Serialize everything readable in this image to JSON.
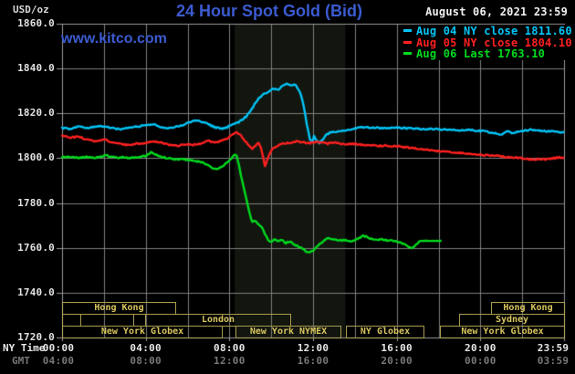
{
  "header": {
    "unit_label": "USD/oz",
    "title": "24 Hour Spot Gold (Bid)",
    "datetime": "August 06, 2021 23:59",
    "watermark": "www.kitco.com"
  },
  "legend": [
    {
      "label": "Aug 04 NY close 1811.60",
      "color": "#00c6f8"
    },
    {
      "label": "Aug 05 NY close 1804.10",
      "color": "#ff2020"
    },
    {
      "label": "Aug 06 Last 1763.10",
      "color": "#00dc1e"
    }
  ],
  "axes": {
    "ny_time_label": "NY Time",
    "gmt_label": "GMT",
    "y_ticks": [
      {
        "value": 1860,
        "label": "1860.0"
      },
      {
        "value": 1840,
        "label": "1840.0"
      },
      {
        "value": 1820,
        "label": "1820.0"
      },
      {
        "value": 1800,
        "label": "1800.0"
      },
      {
        "value": 1780,
        "label": "1780.0"
      },
      {
        "value": 1760,
        "label": "1760.0"
      },
      {
        "value": 1740,
        "label": "1740.0"
      },
      {
        "value": 1720,
        "label": "1720.0"
      }
    ],
    "x_ticks": [
      {
        "hour": 0,
        "ny": "00:00",
        "gmt": "04:00"
      },
      {
        "hour": 4,
        "ny": "04:00",
        "gmt": "08:00"
      },
      {
        "hour": 8,
        "ny": "08:00",
        "gmt": "12:00"
      },
      {
        "hour": 12,
        "ny": "12:00",
        "gmt": "16:00"
      },
      {
        "hour": 16,
        "ny": "16:00",
        "gmt": "20:00"
      },
      {
        "hour": 20,
        "ny": "20:00",
        "gmt": "00:00"
      },
      {
        "hour": 23.983,
        "ny": "23:59",
        "gmt": "03:59"
      }
    ]
  },
  "sessions": [
    {
      "row": 1,
      "start_hour": 0,
      "end_hour": 5.4,
      "label": "Hong Kong"
    },
    {
      "row": 1,
      "start_hour": 20.5,
      "end_hour": 24,
      "label": "Hong Kong"
    },
    {
      "row": 2,
      "start_hour": 0,
      "end_hour": 0.87,
      "label": ""
    },
    {
      "row": 2,
      "start_hour": 0.87,
      "end_hour": 3.4,
      "label": ""
    },
    {
      "row": 2,
      "start_hour": 3.95,
      "end_hour": 10.9,
      "label": "London"
    },
    {
      "row": 2,
      "start_hour": 19.0,
      "end_hour": 24,
      "label": "Sydney"
    },
    {
      "row": 3,
      "start_hour": 0,
      "end_hour": 7.65,
      "label": "New York Globex"
    },
    {
      "row": 3,
      "start_hour": 8.3,
      "end_hour": 13.3,
      "label": "New York NYMEX"
    },
    {
      "row": 3,
      "start_hour": 13.55,
      "end_hour": 17.3,
      "label": "NY Globex"
    },
    {
      "row": 3,
      "start_hour": 18.05,
      "end_hour": 24,
      "label": "New York Globex"
    }
  ],
  "colors": {
    "title_blue": "#3b5bd0",
    "grid_gray": "#7e7e7e",
    "border_gray": "#9a9a9a",
    "band_fill": "#12160f",
    "session_border": "#a89a4e",
    "session_text": "#d8c65e"
  },
  "chart_data": {
    "type": "line",
    "title": "24 Hour Spot Gold (Bid)",
    "xlabel": "NY Time (hours)",
    "ylabel": "USD/oz",
    "xlim": [
      0,
      24
    ],
    "ylim": [
      1720,
      1860
    ],
    "grid": {
      "x_step_hours": 2,
      "y_step": 20
    },
    "legend_position": "top-right",
    "highlight_band_hours": [
      8.25,
      13.55
    ],
    "series": [
      {
        "name": "Aug 04 NY close",
        "close": 1811.6,
        "color": "#00c6f8",
        "noise": 0.8,
        "points": [
          [
            0,
            1813.6
          ],
          [
            0.4,
            1813.1
          ],
          [
            0.8,
            1814.2
          ],
          [
            1.2,
            1813.4
          ],
          [
            1.6,
            1814.0
          ],
          [
            2.0,
            1814.4
          ],
          [
            2.4,
            1813.4
          ],
          [
            2.8,
            1813.0
          ],
          [
            3.2,
            1813.6
          ],
          [
            3.6,
            1814.2
          ],
          [
            4.0,
            1814.6
          ],
          [
            4.4,
            1815.1
          ],
          [
            4.7,
            1814.1
          ],
          [
            5.0,
            1813.3
          ],
          [
            5.4,
            1813.9
          ],
          [
            5.8,
            1814.9
          ],
          [
            6.1,
            1816.0
          ],
          [
            6.4,
            1816.7
          ],
          [
            6.7,
            1816.2
          ],
          [
            7.0,
            1815.2
          ],
          [
            7.3,
            1813.8
          ],
          [
            7.6,
            1813.2
          ],
          [
            7.9,
            1813.9
          ],
          [
            8.2,
            1815.3
          ],
          [
            8.5,
            1816.4
          ],
          [
            8.8,
            1818.5
          ],
          [
            9.0,
            1821.0
          ],
          [
            9.2,
            1824.0
          ],
          [
            9.4,
            1826.6
          ],
          [
            9.6,
            1828.3
          ],
          [
            9.8,
            1829.4
          ],
          [
            10.0,
            1830.6
          ],
          [
            10.2,
            1831.2
          ],
          [
            10.35,
            1830.5
          ],
          [
            10.5,
            1831.8
          ],
          [
            10.65,
            1832.8
          ],
          [
            10.8,
            1833.2
          ],
          [
            11.0,
            1832.4
          ],
          [
            11.1,
            1833.0
          ],
          [
            11.25,
            1831.6
          ],
          [
            11.4,
            1828.8
          ],
          [
            11.55,
            1823.5
          ],
          [
            11.7,
            1815.0
          ],
          [
            11.85,
            1808.5
          ],
          [
            11.95,
            1807.3
          ],
          [
            12.05,
            1809.9
          ],
          [
            12.15,
            1808.3
          ],
          [
            12.3,
            1806.9
          ],
          [
            12.45,
            1808.1
          ],
          [
            12.6,
            1810.3
          ],
          [
            12.8,
            1811.4
          ],
          [
            13.0,
            1811.7
          ],
          [
            13.4,
            1812.3
          ],
          [
            13.8,
            1812.8
          ],
          [
            14.2,
            1813.6
          ],
          [
            14.6,
            1813.9
          ],
          [
            15.0,
            1813.6
          ],
          [
            15.4,
            1813.3
          ],
          [
            15.8,
            1813.7
          ],
          [
            16.2,
            1813.5
          ],
          [
            16.6,
            1813.3
          ],
          [
            17.0,
            1813.1
          ],
          [
            17.4,
            1812.9
          ],
          [
            17.8,
            1813.1
          ],
          [
            18.2,
            1812.8
          ],
          [
            18.6,
            1812.6
          ],
          [
            19.0,
            1812.5
          ],
          [
            19.4,
            1812.8
          ],
          [
            19.8,
            1812.3
          ],
          [
            20.2,
            1812.0
          ],
          [
            20.6,
            1811.3
          ],
          [
            20.9,
            1810.5
          ],
          [
            21.1,
            1811.0
          ],
          [
            21.3,
            1811.9
          ],
          [
            21.5,
            1811.3
          ],
          [
            21.8,
            1811.7
          ],
          [
            22.1,
            1812.4
          ],
          [
            22.4,
            1812.7
          ],
          [
            22.7,
            1812.3
          ],
          [
            23.0,
            1812.1
          ],
          [
            23.4,
            1811.9
          ],
          [
            23.7,
            1811.7
          ],
          [
            23.98,
            1811.6
          ]
        ]
      },
      {
        "name": "Aug 05 NY close",
        "close": 1804.1,
        "color": "#ff2020",
        "noise": 0.8,
        "points": [
          [
            0,
            1810.1
          ],
          [
            0.4,
            1809.2
          ],
          [
            0.8,
            1809.6
          ],
          [
            1.2,
            1808.3
          ],
          [
            1.6,
            1807.6
          ],
          [
            2.0,
            1808.4
          ],
          [
            2.4,
            1807.1
          ],
          [
            2.8,
            1806.3
          ],
          [
            3.2,
            1805.9
          ],
          [
            3.6,
            1806.5
          ],
          [
            4.0,
            1806.9
          ],
          [
            4.4,
            1807.6
          ],
          [
            4.8,
            1806.7
          ],
          [
            5.2,
            1805.9
          ],
          [
            5.5,
            1805.4
          ],
          [
            5.8,
            1806.2
          ],
          [
            6.2,
            1805.9
          ],
          [
            6.6,
            1806.4
          ],
          [
            7.0,
            1807.7
          ],
          [
            7.3,
            1807.1
          ],
          [
            7.6,
            1807.6
          ],
          [
            7.9,
            1808.9
          ],
          [
            8.15,
            1810.8
          ],
          [
            8.35,
            1811.7
          ],
          [
            8.55,
            1810.2
          ],
          [
            8.75,
            1807.6
          ],
          [
            8.95,
            1805.6
          ],
          [
            9.1,
            1804.4
          ],
          [
            9.25,
            1805.7
          ],
          [
            9.4,
            1806.9
          ],
          [
            9.5,
            1804.9
          ],
          [
            9.6,
            1800.9
          ],
          [
            9.7,
            1796.6
          ],
          [
            9.8,
            1798.9
          ],
          [
            9.95,
            1802.4
          ],
          [
            10.1,
            1804.6
          ],
          [
            10.3,
            1805.7
          ],
          [
            10.6,
            1806.6
          ],
          [
            10.9,
            1806.9
          ],
          [
            11.2,
            1807.6
          ],
          [
            11.5,
            1807.1
          ],
          [
            11.8,
            1806.6
          ],
          [
            12.1,
            1807.3
          ],
          [
            12.4,
            1806.9
          ],
          [
            12.7,
            1806.5
          ],
          [
            13.0,
            1807.0
          ],
          [
            13.3,
            1806.4
          ],
          [
            13.6,
            1806.1
          ],
          [
            13.9,
            1806.6
          ],
          [
            14.2,
            1806.1
          ],
          [
            14.5,
            1805.6
          ],
          [
            14.8,
            1805.9
          ],
          [
            15.1,
            1805.4
          ],
          [
            15.4,
            1805.7
          ],
          [
            15.7,
            1805.2
          ],
          [
            16.0,
            1805.5
          ],
          [
            16.3,
            1805.0
          ],
          [
            16.6,
            1804.7
          ],
          [
            17.0,
            1804.2
          ],
          [
            17.4,
            1803.8
          ],
          [
            17.8,
            1803.4
          ],
          [
            18.2,
            1803.0
          ],
          [
            18.6,
            1802.7
          ],
          [
            19.0,
            1802.3
          ],
          [
            19.4,
            1802.0
          ],
          [
            19.8,
            1801.7
          ],
          [
            20.2,
            1801.4
          ],
          [
            20.6,
            1801.1
          ],
          [
            21.0,
            1800.8
          ],
          [
            21.4,
            1800.5
          ],
          [
            21.8,
            1800.2
          ],
          [
            22.2,
            1799.7
          ],
          [
            22.5,
            1799.3
          ],
          [
            22.8,
            1799.8
          ],
          [
            23.1,
            1799.4
          ],
          [
            23.4,
            1799.9
          ],
          [
            23.7,
            1800.2
          ],
          [
            23.98,
            1800.4
          ]
        ]
      },
      {
        "name": "Aug 06 Last",
        "close": 1763.1,
        "color": "#00dc1e",
        "noise": 0.8,
        "flat_after": 17.15,
        "points": [
          [
            0,
            1800.4
          ],
          [
            0.4,
            1800.7
          ],
          [
            0.8,
            1800.2
          ],
          [
            1.2,
            1800.5
          ],
          [
            1.6,
            1800.1
          ],
          [
            1.9,
            1800.8
          ],
          [
            2.1,
            1801.4
          ],
          [
            2.3,
            1800.7
          ],
          [
            2.6,
            1800.2
          ],
          [
            2.9,
            1800.5
          ],
          [
            3.2,
            1800.1
          ],
          [
            3.5,
            1800.3
          ],
          [
            3.8,
            1800.6
          ],
          [
            4.05,
            1801.2
          ],
          [
            4.25,
            1802.6
          ],
          [
            4.45,
            1801.9
          ],
          [
            4.65,
            1800.9
          ],
          [
            4.9,
            1800.3
          ],
          [
            5.2,
            1799.8
          ],
          [
            5.5,
            1799.3
          ],
          [
            5.8,
            1799.6
          ],
          [
            6.1,
            1799.1
          ],
          [
            6.4,
            1798.7
          ],
          [
            6.7,
            1798.2
          ],
          [
            6.95,
            1797.2
          ],
          [
            7.15,
            1795.9
          ],
          [
            7.35,
            1795.1
          ],
          [
            7.55,
            1795.8
          ],
          [
            7.75,
            1797.1
          ],
          [
            7.95,
            1798.7
          ],
          [
            8.1,
            1800.1
          ],
          [
            8.25,
            1801.4
          ],
          [
            8.35,
            1800.9
          ],
          [
            8.45,
            1797.5
          ],
          [
            8.55,
            1792.5
          ],
          [
            8.7,
            1786.5
          ],
          [
            8.85,
            1780.0
          ],
          [
            9.0,
            1774.0
          ],
          [
            9.1,
            1771.6
          ],
          [
            9.25,
            1771.9
          ],
          [
            9.4,
            1770.7
          ],
          [
            9.55,
            1769.2
          ],
          [
            9.7,
            1766.3
          ],
          [
            9.85,
            1763.8
          ],
          [
            10.0,
            1762.6
          ],
          [
            10.15,
            1763.9
          ],
          [
            10.3,
            1762.9
          ],
          [
            10.5,
            1763.6
          ],
          [
            10.7,
            1762.2
          ],
          [
            10.9,
            1762.9
          ],
          [
            11.1,
            1761.6
          ],
          [
            11.3,
            1760.7
          ],
          [
            11.5,
            1759.7
          ],
          [
            11.7,
            1758.4
          ],
          [
            11.85,
            1757.7
          ],
          [
            12.0,
            1758.9
          ],
          [
            12.2,
            1760.7
          ],
          [
            12.4,
            1762.2
          ],
          [
            12.6,
            1763.7
          ],
          [
            12.8,
            1764.4
          ],
          [
            13.0,
            1763.7
          ],
          [
            13.2,
            1763.3
          ],
          [
            13.5,
            1763.5
          ],
          [
            13.8,
            1762.9
          ],
          [
            14.0,
            1763.4
          ],
          [
            14.2,
            1764.3
          ],
          [
            14.4,
            1765.4
          ],
          [
            14.6,
            1764.9
          ],
          [
            14.8,
            1763.9
          ],
          [
            15.0,
            1763.5
          ],
          [
            15.3,
            1763.7
          ],
          [
            15.6,
            1763.3
          ],
          [
            15.9,
            1763.0
          ],
          [
            16.2,
            1762.4
          ],
          [
            16.5,
            1760.9
          ],
          [
            16.7,
            1759.7
          ],
          [
            16.85,
            1760.6
          ],
          [
            17.0,
            1762.2
          ],
          [
            17.15,
            1763.1
          ],
          [
            18.1,
            1763.1
          ]
        ]
      }
    ]
  }
}
